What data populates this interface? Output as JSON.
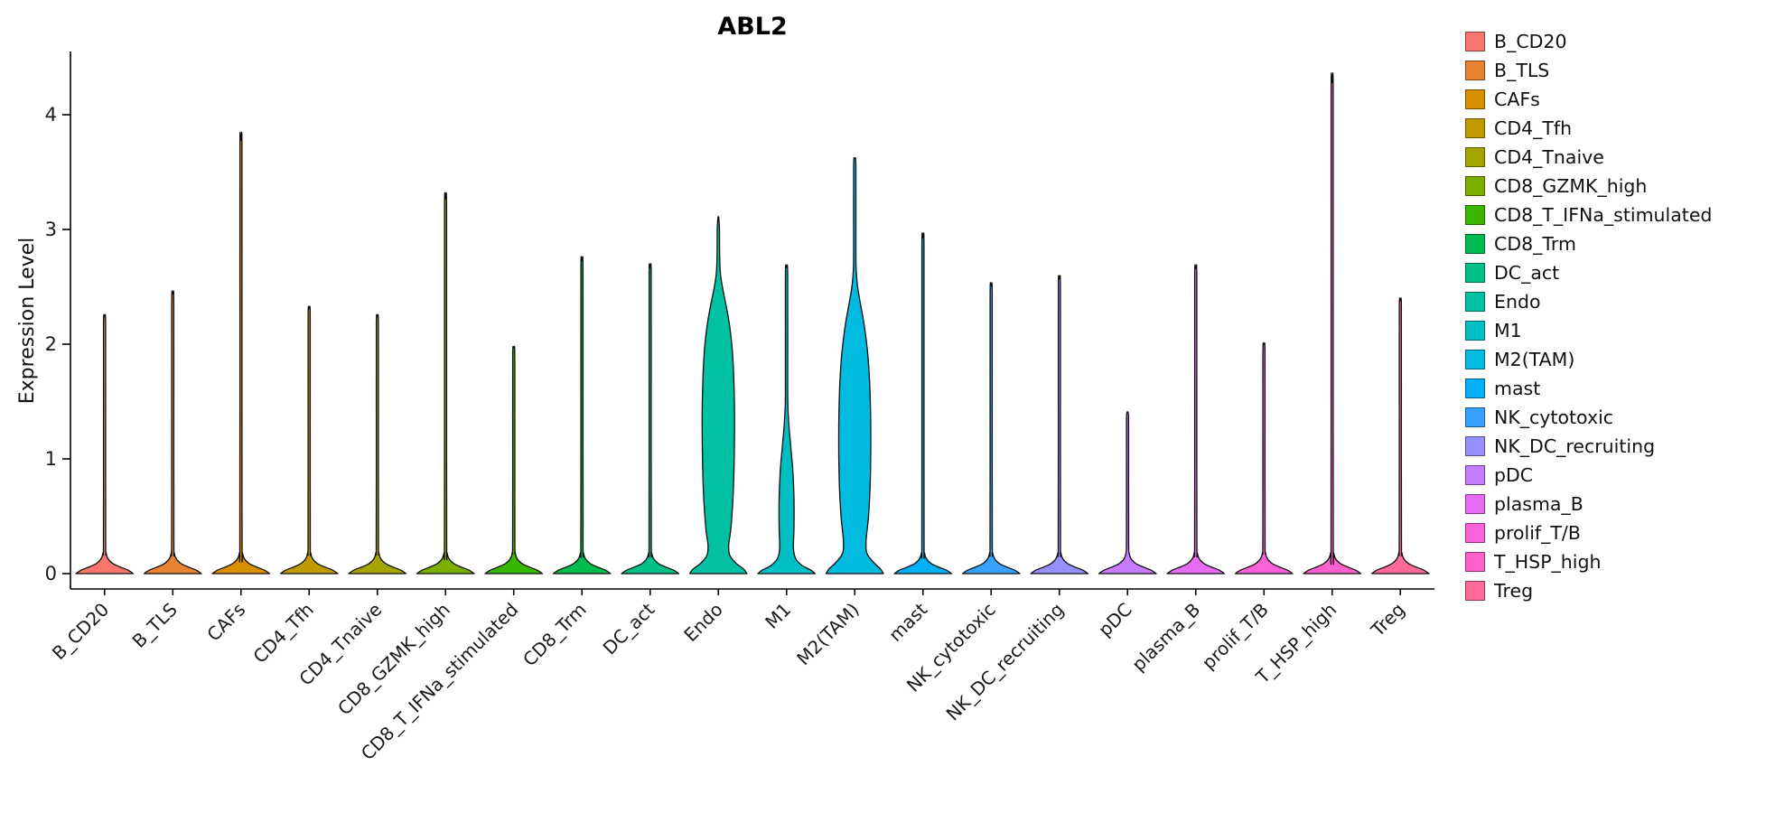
{
  "chart_data": {
    "type": "violin",
    "title": "ABL2",
    "xlabel": "",
    "ylabel": "Expression Level",
    "ylim": [
      -0.12,
      4.55
    ],
    "yticks": [
      0,
      1,
      2,
      3,
      4
    ],
    "grid": false,
    "legend_position": "right",
    "categories": [
      "B_CD20",
      "B_TLS",
      "CAFs",
      "CD4_Tfh",
      "CD4_Tnaive",
      "CD8_GZMK_high",
      "CD8_T_IFNa_stimulated",
      "CD8_Trm",
      "DC_act",
      "Endo",
      "M1",
      "M2(TAM)",
      "mast",
      "NK_cytotoxic",
      "NK_DC_recruiting",
      "pDC",
      "plasma_B",
      "prolif_T/B",
      "T_HSP_high",
      "Treg"
    ],
    "spike_base_profile": [
      [
        0,
        1.0
      ],
      [
        0.03,
        0.82
      ],
      [
        0.06,
        0.52
      ],
      [
        0.09,
        0.28
      ],
      [
        0.13,
        0.12
      ],
      [
        0.18,
        0.055
      ],
      [
        0.26,
        0.04
      ]
    ],
    "spike_half_width": 0.036,
    "tip_half_width": 0.01,
    "series": [
      {
        "label": "B_CD20",
        "color": "#F8766D",
        "max": 2.24
      },
      {
        "label": "B_TLS",
        "color": "#EA8331",
        "max": 2.44
      },
      {
        "label": "CAFs",
        "color": "#D89000",
        "max": 3.78
      },
      {
        "label": "CD4_Tfh",
        "color": "#C09B00",
        "max": 2.31
      },
      {
        "label": "CD4_Tnaive",
        "color": "#A3A500",
        "max": 2.24
      },
      {
        "label": "CD8_GZMK_high",
        "color": "#7CAE00",
        "max": 3.27
      },
      {
        "label": "CD8_T_IFNa_stimulated",
        "color": "#39B600",
        "max": 1.97
      },
      {
        "label": "CD8_Trm",
        "color": "#00BB4E",
        "max": 2.73
      },
      {
        "label": "DC_act",
        "color": "#00C087",
        "max": 2.67
      },
      {
        "label": "Endo",
        "color": "#00C1A3",
        "max": 3.11,
        "density": [
          [
            0,
            1.0
          ],
          [
            0.04,
            0.88
          ],
          [
            0.09,
            0.62
          ],
          [
            0.16,
            0.4
          ],
          [
            0.25,
            0.36
          ],
          [
            0.4,
            0.44
          ],
          [
            0.7,
            0.52
          ],
          [
            1.1,
            0.56
          ],
          [
            1.5,
            0.56
          ],
          [
            1.9,
            0.5
          ],
          [
            2.15,
            0.4
          ],
          [
            2.35,
            0.26
          ],
          [
            2.5,
            0.14
          ],
          [
            2.62,
            0.07
          ],
          [
            2.78,
            0.045
          ],
          [
            3.0,
            0.038
          ],
          [
            3.11,
            0.01
          ]
        ]
      },
      {
        "label": "M1",
        "color": "#00BFC4",
        "max": 2.67,
        "density": [
          [
            0,
            1.0
          ],
          [
            0.03,
            0.85
          ],
          [
            0.07,
            0.55
          ],
          [
            0.13,
            0.32
          ],
          [
            0.22,
            0.24
          ],
          [
            0.4,
            0.26
          ],
          [
            0.65,
            0.26
          ],
          [
            0.9,
            0.22
          ],
          [
            1.1,
            0.15
          ],
          [
            1.3,
            0.08
          ],
          [
            1.45,
            0.05
          ],
          [
            1.62,
            0.04
          ],
          [
            2.59,
            0.038
          ],
          [
            2.67,
            0.01
          ]
        ]
      },
      {
        "label": "M2(TAM)",
        "color": "#00BAE0",
        "max": 3.62,
        "density": [
          [
            0,
            1.0
          ],
          [
            0.04,
            0.9
          ],
          [
            0.1,
            0.65
          ],
          [
            0.18,
            0.42
          ],
          [
            0.3,
            0.4
          ],
          [
            0.5,
            0.48
          ],
          [
            0.8,
            0.54
          ],
          [
            1.2,
            0.56
          ],
          [
            1.6,
            0.53
          ],
          [
            1.9,
            0.46
          ],
          [
            2.15,
            0.34
          ],
          [
            2.35,
            0.2
          ],
          [
            2.5,
            0.1
          ],
          [
            2.65,
            0.05
          ],
          [
            2.82,
            0.04
          ],
          [
            3.54,
            0.038
          ],
          [
            3.62,
            0.01
          ]
        ]
      },
      {
        "label": "mast",
        "color": "#00B0F6",
        "max": 2.93
      },
      {
        "label": "NK_cytotoxic",
        "color": "#35A2FF",
        "max": 2.51
      },
      {
        "label": "NK_DC_recruiting",
        "color": "#9590FF",
        "max": 2.57
      },
      {
        "label": "pDC",
        "color": "#C77CFF",
        "max": 1.41
      },
      {
        "label": "plasma_B",
        "color": "#E76BF3",
        "max": 2.66
      },
      {
        "label": "prolif_T/B",
        "color": "#FA62DB",
        "max": 2.0
      },
      {
        "label": "T_HSP_high",
        "color": "#FF61CC",
        "max": 4.28
      },
      {
        "label": "Treg",
        "color": "#FF6A98",
        "max": 2.38
      }
    ]
  }
}
